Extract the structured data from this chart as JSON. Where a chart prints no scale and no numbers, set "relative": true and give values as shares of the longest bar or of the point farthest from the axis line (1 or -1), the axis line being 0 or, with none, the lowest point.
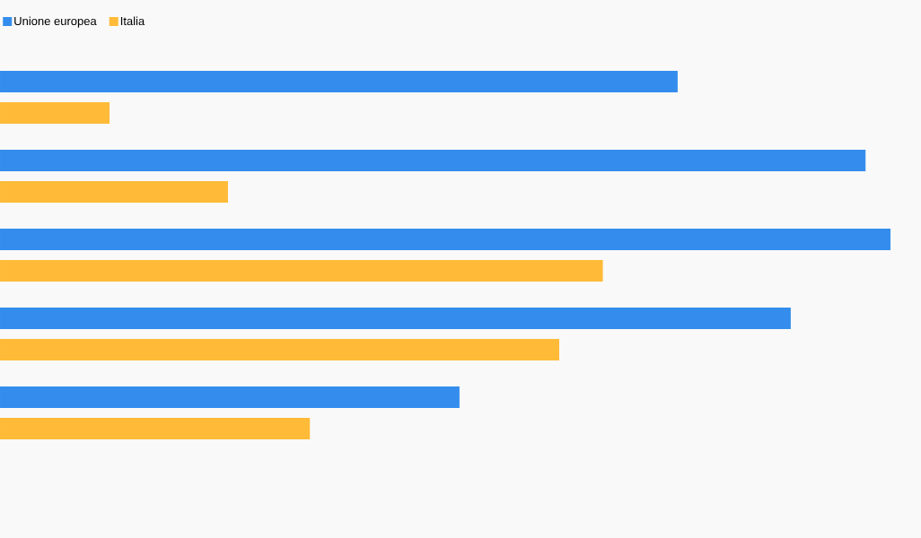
{
  "chart_data": {
    "type": "bar",
    "orientation": "horizontal",
    "relative": true,
    "legend": "top left",
    "categories": [
      null,
      null,
      null,
      null,
      null
    ],
    "series": [
      {
        "name": "Unione europea",
        "color": "#348ded",
        "values": [
          0.761,
          0.972,
          1,
          0.888,
          0.516
        ]
      },
      {
        "name": "Italia",
        "color": "#ffbb38",
        "values": [
          0.123,
          0.256,
          0.677,
          0.628,
          0.348
        ]
      }
    ]
  }
}
